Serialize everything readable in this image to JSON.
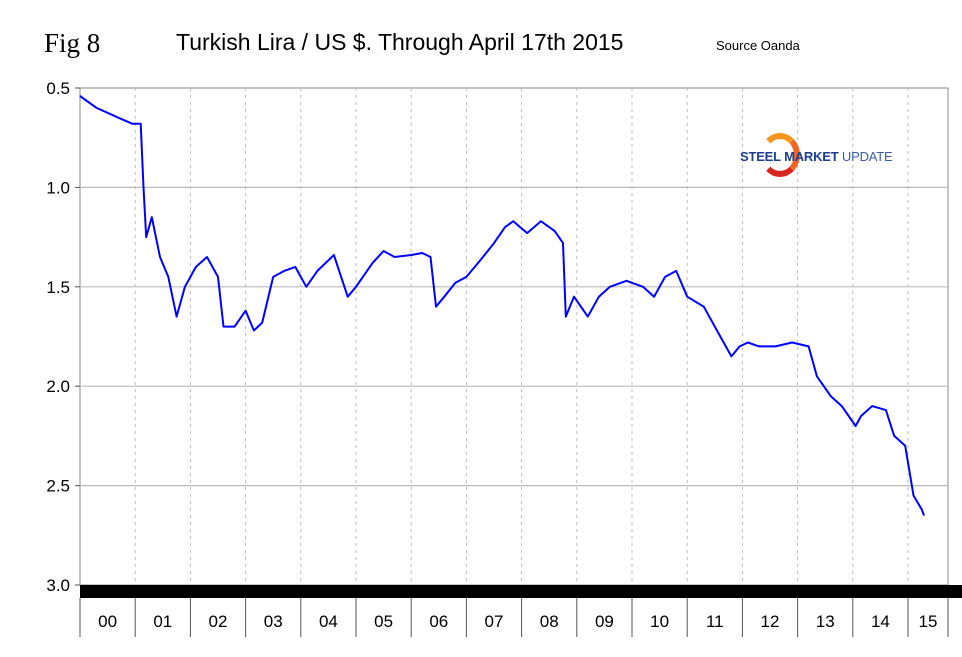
{
  "fig_label": "Fig 8",
  "source": "Source Oanda",
  "logo": {
    "bold": "STEEL MARKET",
    "light": "UPDATE"
  },
  "chart_data": {
    "type": "line",
    "title": "Turkish Lira / US $. Through April 17th 2015",
    "xlabel": "",
    "ylabel": "",
    "y_inverted": true,
    "ylim": [
      0.5,
      3.0
    ],
    "yticks": [
      "0.5",
      "1.0",
      "1.5",
      "2.0",
      "2.5",
      "3.0"
    ],
    "xlim": [
      2000,
      2015.75
    ],
    "xtick_labels": [
      "00",
      "01",
      "02",
      "03",
      "04",
      "05",
      "06",
      "07",
      "08",
      "09",
      "10",
      "11",
      "12",
      "13",
      "14",
      "15"
    ],
    "grid": true,
    "line_color": "#0000ff",
    "x": [
      2000.0,
      2000.3,
      2000.7,
      2000.95,
      2001.1,
      2001.15,
      2001.2,
      2001.3,
      2001.45,
      2001.6,
      2001.75,
      2001.9,
      2002.0,
      2002.1,
      2002.3,
      2002.5,
      2002.6,
      2002.8,
      2003.0,
      2003.15,
      2003.3,
      2003.5,
      2003.7,
      2003.9,
      2004.0,
      2004.1,
      2004.3,
      2004.6,
      2004.85,
      2005.0,
      2005.3,
      2005.5,
      2005.7,
      2006.0,
      2006.2,
      2006.35,
      2006.45,
      2006.6,
      2006.8,
      2007.0,
      2007.3,
      2007.5,
      2007.7,
      2007.85,
      2008.1,
      2008.35,
      2008.6,
      2008.75,
      2008.8,
      2008.95,
      2009.2,
      2009.4,
      2009.6,
      2009.9,
      2010.2,
      2010.4,
      2010.6,
      2010.8,
      2011.0,
      2011.3,
      2011.6,
      2011.8,
      2011.95,
      2012.1,
      2012.3,
      2012.6,
      2012.9,
      2013.2,
      2013.35,
      2013.6,
      2013.8,
      2014.05,
      2014.15,
      2014.35,
      2014.6,
      2014.75,
      2014.95,
      2015.1,
      2015.25,
      2015.29
    ],
    "values": [
      0.54,
      0.6,
      0.65,
      0.68,
      0.68,
      1.0,
      1.25,
      1.15,
      1.35,
      1.45,
      1.65,
      1.5,
      1.45,
      1.4,
      1.35,
      1.45,
      1.7,
      1.7,
      1.62,
      1.72,
      1.68,
      1.45,
      1.42,
      1.4,
      1.45,
      1.5,
      1.42,
      1.34,
      1.55,
      1.5,
      1.38,
      1.32,
      1.35,
      1.34,
      1.33,
      1.35,
      1.6,
      1.55,
      1.48,
      1.45,
      1.35,
      1.28,
      1.2,
      1.17,
      1.23,
      1.17,
      1.22,
      1.28,
      1.65,
      1.55,
      1.65,
      1.55,
      1.5,
      1.47,
      1.5,
      1.55,
      1.45,
      1.42,
      1.55,
      1.6,
      1.75,
      1.85,
      1.8,
      1.78,
      1.8,
      1.8,
      1.78,
      1.8,
      1.95,
      2.05,
      2.1,
      2.2,
      2.15,
      2.1,
      2.12,
      2.25,
      2.3,
      2.55,
      2.62,
      2.65
    ]
  }
}
